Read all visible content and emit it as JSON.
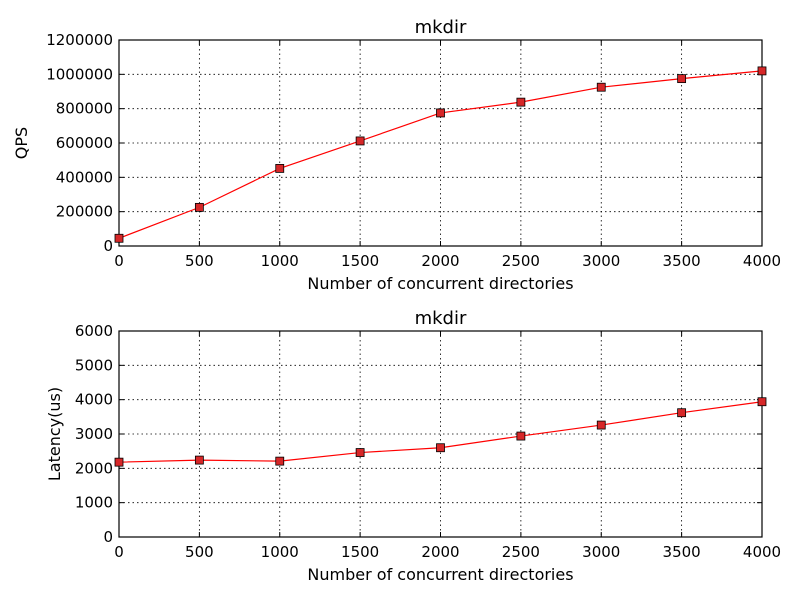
{
  "chart_data": [
    {
      "type": "line",
      "title": "mkdir",
      "xlabel": "Number of concurrent directories",
      "ylabel": "QPS",
      "xlim": [
        0,
        4000
      ],
      "ylim": [
        0,
        1200000
      ],
      "xticks": [
        0,
        500,
        1000,
        1500,
        2000,
        2500,
        3000,
        3500,
        4000
      ],
      "yticks": [
        0,
        200000,
        400000,
        600000,
        800000,
        1000000,
        1200000
      ],
      "grid": true,
      "series": [
        {
          "color": "#ff0000",
          "marker": "square",
          "marker_color": "#d62728",
          "x": [
            0,
            500,
            1000,
            1500,
            2000,
            2500,
            3000,
            3500,
            4000
          ],
          "y": [
            45000,
            225000,
            452000,
            612000,
            775000,
            838000,
            925000,
            975000,
            1020000
          ]
        }
      ]
    },
    {
      "type": "line",
      "title": "mkdir",
      "xlabel": "Number of concurrent directories",
      "ylabel": "Latency(us)",
      "xlim": [
        0,
        4000
      ],
      "ylim": [
        0,
        6000
      ],
      "xticks": [
        0,
        500,
        1000,
        1500,
        2000,
        2500,
        3000,
        3500,
        4000
      ],
      "yticks": [
        0,
        1000,
        2000,
        3000,
        4000,
        5000,
        6000
      ],
      "grid": true,
      "series": [
        {
          "color": "#ff0000",
          "marker": "square",
          "marker_color": "#d62728",
          "x": [
            0,
            500,
            1000,
            1500,
            2000,
            2500,
            3000,
            3500,
            4000
          ],
          "y": [
            2180,
            2240,
            2210,
            2460,
            2600,
            2940,
            3260,
            3620,
            3940
          ]
        }
      ]
    }
  ]
}
